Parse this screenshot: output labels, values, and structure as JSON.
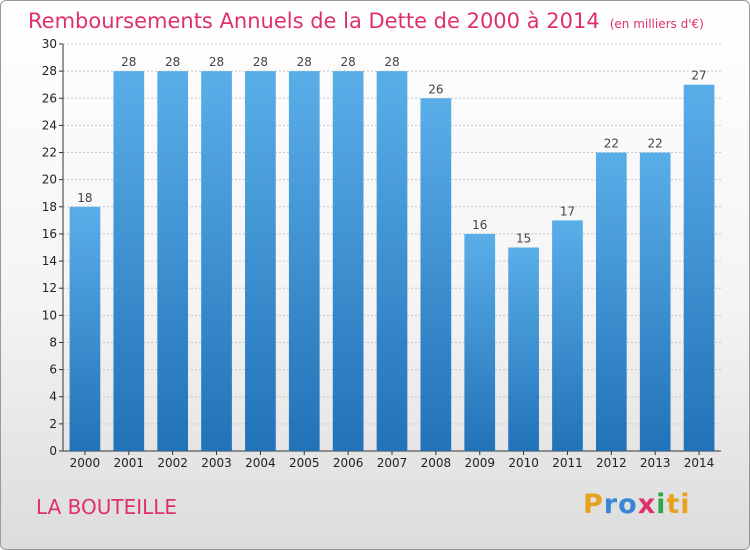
{
  "header": {
    "title": "Remboursements Annuels de la Dette de 2000 à 2014",
    "subtitle": "(en milliers d'€)"
  },
  "footer": {
    "commune": "LA BOUTEILLE",
    "logo_text": "Proxiti",
    "logo_letters": [
      "P",
      "r",
      "o",
      "x",
      "i",
      "ti"
    ]
  },
  "colors": {
    "bar_light": "#5aaee8",
    "bar_dark": "#2272b8",
    "accent": "#e0306a",
    "grid": "#c8c8c8"
  },
  "chart_data": {
    "type": "bar",
    "title": "Remboursements Annuels de la Dette de 2000 à 2014",
    "subtitle": "(en milliers d'€)",
    "categories": [
      "2000",
      "2001",
      "2002",
      "2003",
      "2004",
      "2005",
      "2006",
      "2007",
      "2008",
      "2009",
      "2010",
      "2011",
      "2012",
      "2013",
      "2014"
    ],
    "values": [
      18,
      28,
      28,
      28,
      28,
      28,
      28,
      28,
      26,
      16,
      15,
      17,
      22,
      22,
      27
    ],
    "ylim": [
      0,
      30
    ],
    "yticks": [
      0,
      2,
      4,
      6,
      8,
      10,
      12,
      14,
      16,
      18,
      20,
      22,
      24,
      26,
      28,
      30
    ],
    "grid": true,
    "xlabel": "",
    "ylabel": ""
  }
}
